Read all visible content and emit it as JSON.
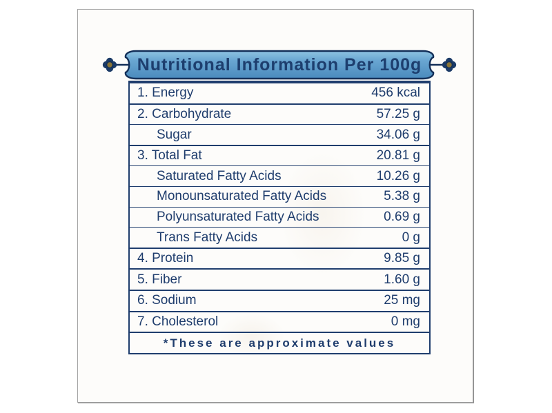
{
  "header": {
    "title": "Nutritional Information Per 100g"
  },
  "table": {
    "rows": [
      {
        "label": "1. Energy",
        "value": "456 kcal",
        "major": true,
        "indent": false
      },
      {
        "label": "2. Carbohydrate",
        "value": "57.25 g",
        "major": true,
        "indent": false
      },
      {
        "label": "Sugar",
        "value": "34.06 g",
        "major": false,
        "indent": true
      },
      {
        "label": "3. Total Fat",
        "value": "20.81 g",
        "major": true,
        "indent": false
      },
      {
        "label": "Saturated Fatty Acids",
        "value": "10.26 g",
        "major": false,
        "indent": true
      },
      {
        "label": "Monounsaturated Fatty Acids",
        "value": "5.38 g",
        "major": false,
        "indent": true
      },
      {
        "label": "Polyunsaturated Fatty Acids",
        "value": "0.69 g",
        "major": false,
        "indent": true
      },
      {
        "label": "Trans Fatty Acids",
        "value": "0 g",
        "major": false,
        "indent": true
      },
      {
        "label": "4. Protein",
        "value": "9.85 g",
        "major": true,
        "indent": false
      },
      {
        "label": "5. Fiber",
        "value": "1.60 g",
        "major": true,
        "indent": false
      },
      {
        "label": "6. Sodium",
        "value": "25 mg",
        "major": true,
        "indent": false
      },
      {
        "label": "7. Cholesterol",
        "value": "0 mg",
        "major": true,
        "indent": false
      }
    ],
    "footnote": "*These are approximate values"
  },
  "colors": {
    "navy_text": "#1f3d6d",
    "navy_border": "#132f58",
    "banner_blue_top": "#8ec3e2",
    "banner_blue_bottom": "#4a8abd",
    "ornament_gold": "#8a7436",
    "frame_border_gray": "#a3a3a3",
    "paper": "#fdfcfa"
  }
}
